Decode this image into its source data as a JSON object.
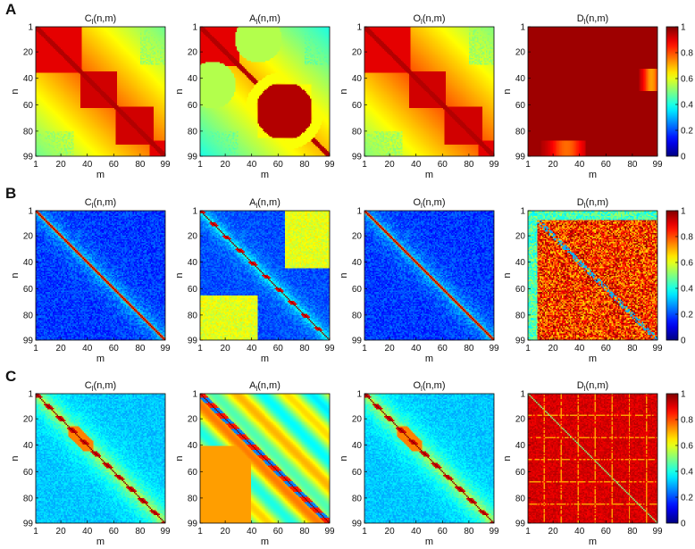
{
  "chart_data": {
    "type": "heatmap",
    "colormap": "jet",
    "color_range": [
      0,
      1
    ],
    "matrix_size": 99,
    "x_ticks": [
      "1",
      "20",
      "40",
      "60",
      "80",
      "99"
    ],
    "y_ticks": [
      "1",
      "20",
      "40",
      "60",
      "80",
      "99"
    ],
    "xlabel": "m",
    "ylabel": "n",
    "colorbar_ticks": [
      "0",
      "0.2",
      "0.4",
      "0.6",
      "0.8",
      "1"
    ],
    "rows": [
      {
        "label": "A",
        "panels": [
          {
            "measure": "C",
            "title_main": "C",
            "title_sub": "l",
            "title_args": "(n,m)",
            "pattern": "smooth-blocky",
            "base": 0.78,
            "blocks": [
              [
                1,
                35,
                0.9
              ],
              [
                35,
                62,
                0.92
              ],
              [
                62,
                90,
                0.92
              ],
              [
                88,
                99,
                0.9
              ]
            ],
            "corner": 0.5
          },
          {
            "measure": "A",
            "title_main": "A",
            "title_sub": "l",
            "title_args": "(n,m)",
            "pattern": "smooth-circles",
            "base": 0.7,
            "blocks": [
              [
                1,
                30,
                0.9
              ],
              [
                45,
                85,
                0.95
              ]
            ],
            "corner": 0.45
          },
          {
            "measure": "O",
            "title_main": "O",
            "title_sub": "l",
            "title_args": "(n,m)",
            "pattern": "smooth-blocky",
            "base": 0.8,
            "blocks": [
              [
                1,
                35,
                0.9
              ],
              [
                35,
                62,
                0.92
              ],
              [
                62,
                90,
                0.92
              ],
              [
                88,
                99,
                0.9
              ]
            ],
            "corner": 0.5
          },
          {
            "measure": "D",
            "title_main": "D",
            "title_sub": "l",
            "title_args": "(n,m)",
            "pattern": "uniform-high",
            "base": 0.97
          }
        ]
      },
      {
        "label": "B",
        "panels": [
          {
            "measure": "C",
            "title_main": "C",
            "title_sub": "l",
            "title_args": "(n,m)",
            "pattern": "diagonal-low",
            "base": 0.15
          },
          {
            "measure": "A",
            "title_main": "A",
            "title_sub": "l",
            "title_args": "(n,m)",
            "pattern": "diagonal-offdiag",
            "base": 0.2
          },
          {
            "measure": "O",
            "title_main": "O",
            "title_sub": "l",
            "title_args": "(n,m)",
            "pattern": "diagonal-low",
            "base": 0.12
          },
          {
            "measure": "D",
            "title_main": "D",
            "title_sub": "l",
            "title_args": "(n,m)",
            "pattern": "noisy-high",
            "base": 0.75
          }
        ]
      },
      {
        "label": "C",
        "panels": [
          {
            "measure": "C",
            "title_main": "C",
            "title_sub": "l",
            "title_args": "(n,m)",
            "pattern": "diagonal-mid",
            "base": 0.35
          },
          {
            "measure": "A",
            "title_main": "A",
            "title_sub": "l",
            "title_args": "(n,m)",
            "pattern": "diagonal-bands",
            "base": 0.55
          },
          {
            "measure": "O",
            "title_main": "O",
            "title_sub": "l",
            "title_args": "(n,m)",
            "pattern": "diagonal-mid",
            "base": 0.33
          },
          {
            "measure": "D",
            "title_main": "D",
            "title_sub": "l",
            "title_args": "(n,m)",
            "pattern": "high-streaks",
            "base": 0.9
          }
        ]
      }
    ]
  }
}
